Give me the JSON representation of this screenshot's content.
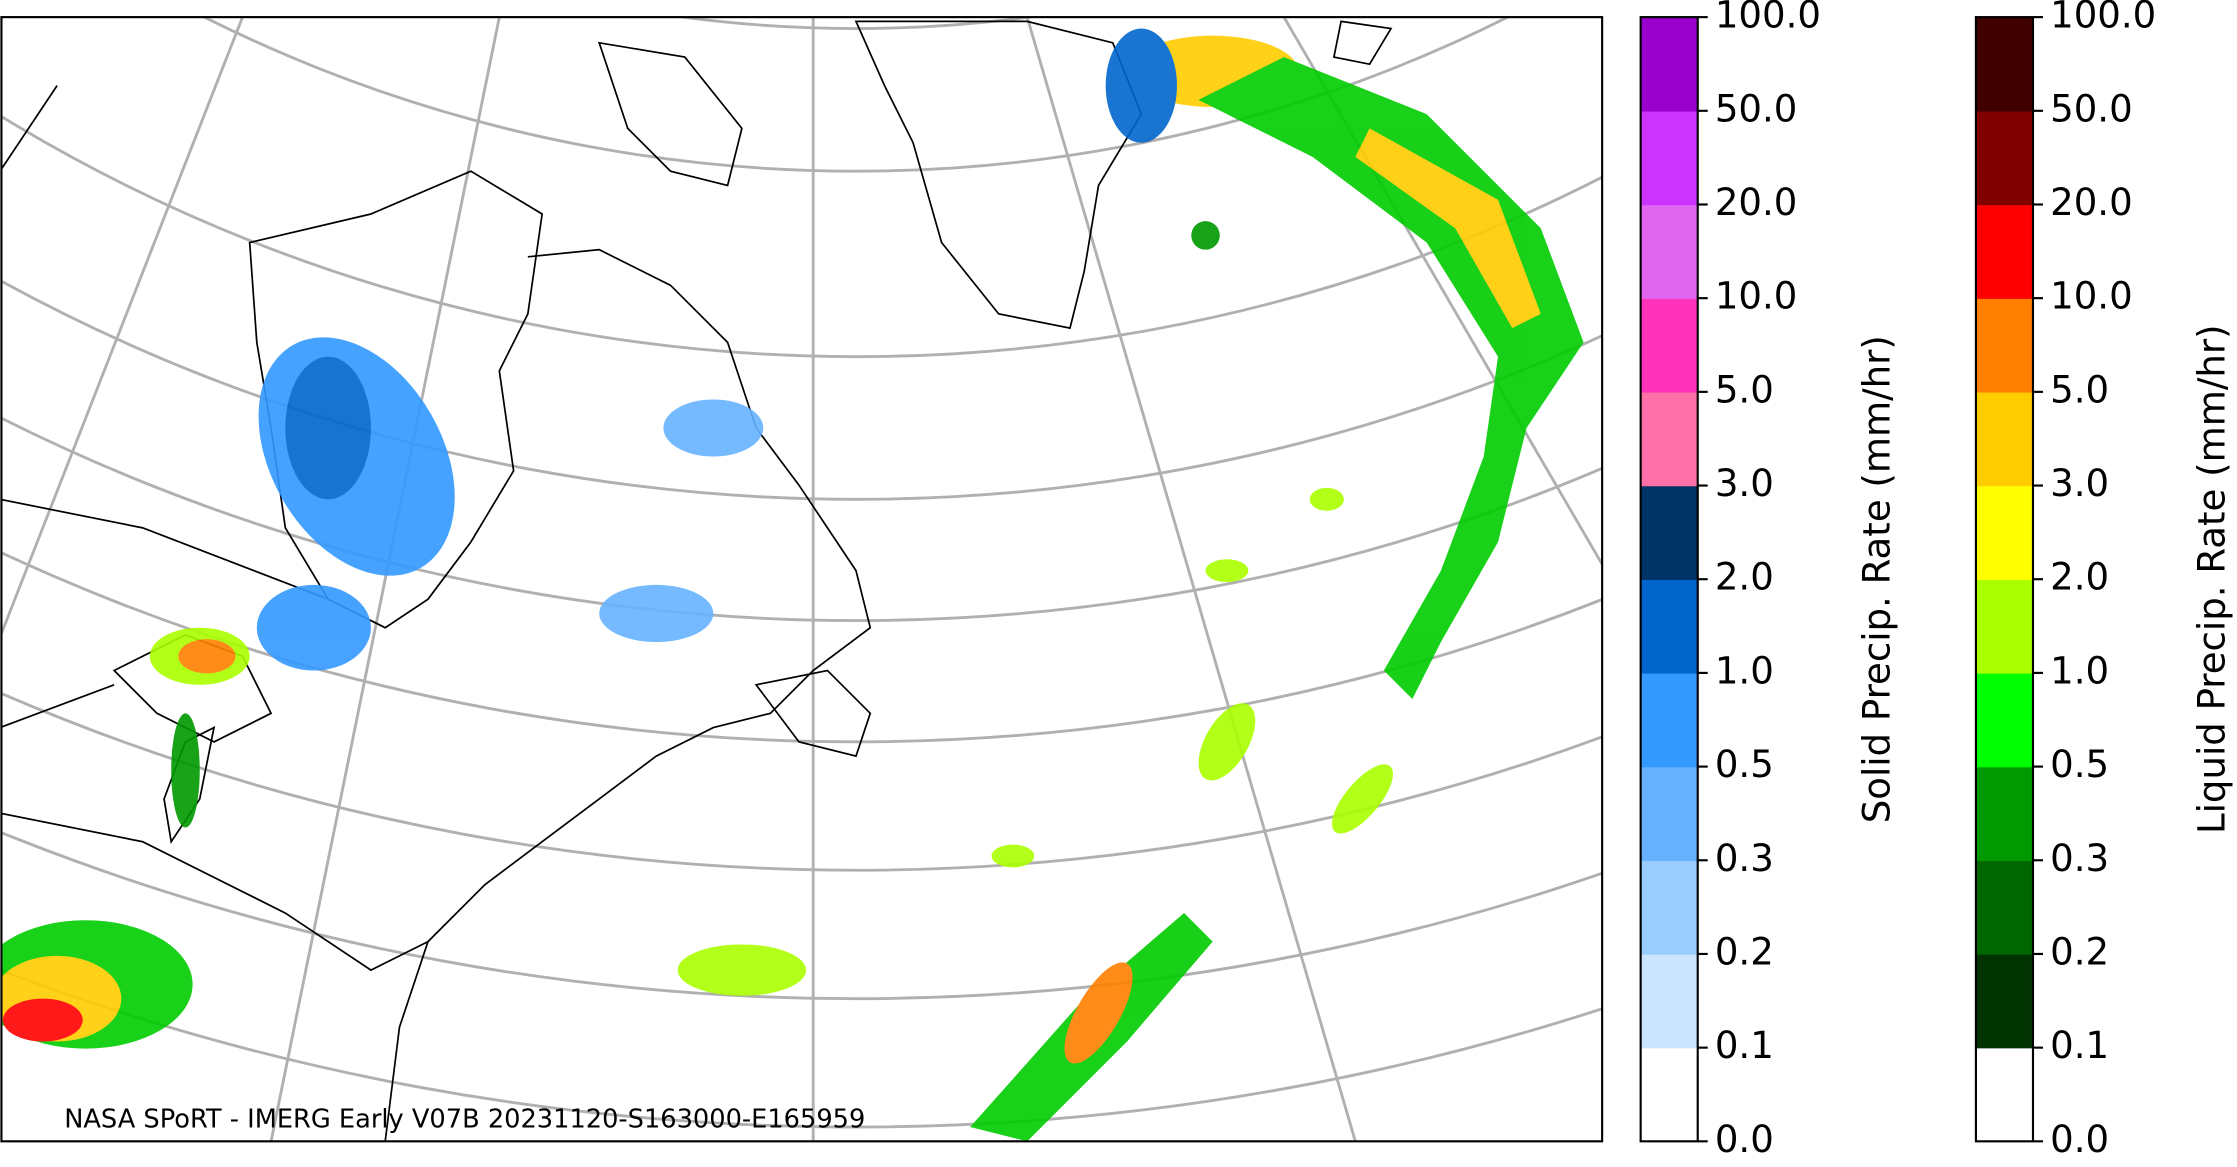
{
  "map": {
    "credit": "NASA SPoRT - IMERG Early V07B 20231120-S163000-E165959"
  },
  "colorbars": [
    {
      "label": "Solid Precip. Rate (mm/hr)",
      "ticks": [
        "0.0",
        "0.1",
        "0.2",
        "0.3",
        "0.5",
        "1.0",
        "2.0",
        "3.0",
        "5.0",
        "10.0",
        "20.0",
        "50.0",
        "100.0"
      ],
      "colors": [
        "#ffffff",
        "#cce5ff",
        "#99ccff",
        "#66b2ff",
        "#3399ff",
        "#0066cc",
        "#003366",
        "#ff6fa8",
        "#ff33bb",
        "#e066f0",
        "#cc33ff",
        "#9900cc"
      ]
    },
    {
      "label": "Liquid Precip. Rate (mm/hr)",
      "ticks": [
        "0.0",
        "0.1",
        "0.2",
        "0.3",
        "0.5",
        "1.0",
        "2.0",
        "3.0",
        "5.0",
        "10.0",
        "20.0",
        "50.0",
        "100.0"
      ],
      "colors": [
        "#ffffff",
        "#003300",
        "#006600",
        "#009900",
        "#00ff00",
        "#aaff00",
        "#ffff00",
        "#ffcc00",
        "#ff8000",
        "#ff0000",
        "#800000",
        "#400000"
      ]
    }
  ]
}
